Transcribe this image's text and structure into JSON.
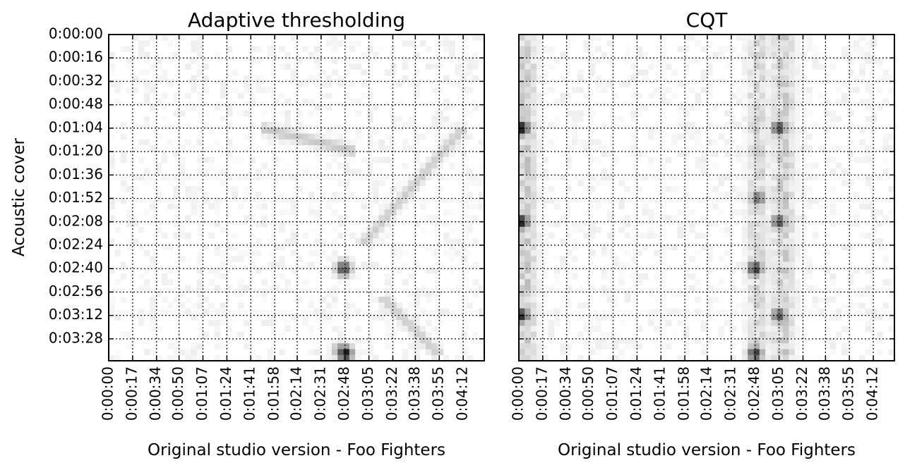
{
  "chart_data": [
    {
      "type": "heatmap",
      "title": "Adaptive thresholding",
      "xlabel": "Original studio version - Foo Fighters",
      "ylabel": "Acoustic cover",
      "x_tick_labels": [
        "0:00:00",
        "0:00:17",
        "0:00:34",
        "0:00:50",
        "0:01:07",
        "0:01:24",
        "0:01:41",
        "0:01:58",
        "0:02:14",
        "0:02:31",
        "0:02:48",
        "0:03:05",
        "0:03:22",
        "0:03:38",
        "0:03:55",
        "0:04:12"
      ],
      "y_tick_labels": [
        "0:00:00",
        "0:00:16",
        "0:00:32",
        "0:00:48",
        "0:01:04",
        "0:01:20",
        "0:01:36",
        "0:01:52",
        "0:02:08",
        "0:02:24",
        "0:02:40",
        "0:02:56",
        "0:03:12",
        "0:03:28"
      ],
      "grid": true,
      "colormap": "grayscale (white = low, black = high)",
      "xlim": [
        "0:00:00",
        "0:04:27"
      ],
      "ylim": [
        "0:03:43",
        "0:00:00"
      ],
      "features": [
        {
          "kind": "diagonal",
          "from": [
            "0:01:04",
            "0:04:12"
          ],
          "to": [
            "0:02:24",
            "0:03:00"
          ],
          "intensity": 0.2
        },
        {
          "kind": "diagonal",
          "from": [
            "0:01:04",
            "0:01:48"
          ],
          "to": [
            "0:01:20",
            "0:02:56"
          ],
          "intensity": 0.22
        },
        {
          "kind": "diagonal",
          "from": [
            "0:03:00",
            "0:03:15"
          ],
          "to": [
            "0:03:40",
            "0:03:56"
          ],
          "intensity": 0.2
        },
        {
          "kind": "hotspot",
          "x": "0:02:47",
          "y": "0:02:40",
          "intensity": 0.75
        },
        {
          "kind": "hotspot",
          "x": "0:02:48",
          "y": "0:03:38",
          "intensity": 0.95
        },
        {
          "kind": "hotspot",
          "x": "0:02:45",
          "y": "0:03:36",
          "intensity": 0.5
        }
      ]
    },
    {
      "type": "heatmap",
      "title": "CQT",
      "xlabel": "Original studio version - Foo Fighters",
      "ylabel": "",
      "x_tick_labels": [
        "0:00:00",
        "0:00:17",
        "0:00:34",
        "0:00:50",
        "0:01:07",
        "0:01:24",
        "0:01:41",
        "0:01:58",
        "0:02:14",
        "0:02:31",
        "0:02:48",
        "0:03:05",
        "0:03:22",
        "0:03:38",
        "0:03:55",
        "0:04:12"
      ],
      "y_tick_labels": [],
      "grid": true,
      "colormap": "grayscale (white = low, black = high)",
      "xlim": [
        "0:00:00",
        "0:04:27"
      ],
      "ylim": [
        "0:03:43",
        "0:00:00"
      ],
      "features": [
        {
          "kind": "column",
          "x": "0:00:05",
          "y_from": "0:00:00",
          "y_to": "0:03:43",
          "intensity": 0.55
        },
        {
          "kind": "column",
          "x": "0:03:08",
          "y_from": "0:00:00",
          "y_to": "0:03:43",
          "intensity": 0.55
        },
        {
          "kind": "column",
          "x": "0:02:50",
          "y_from": "0:00:00",
          "y_to": "0:03:43",
          "intensity": 0.45
        },
        {
          "kind": "hotspot",
          "x": "0:00:02",
          "y": "0:01:04",
          "intensity": 0.95
        },
        {
          "kind": "hotspot",
          "x": "0:00:02",
          "y": "0:02:08",
          "intensity": 0.9
        },
        {
          "kind": "hotspot",
          "x": "0:00:02",
          "y": "0:03:12",
          "intensity": 0.85
        },
        {
          "kind": "hotspot",
          "x": "0:03:05",
          "y": "0:01:04",
          "intensity": 0.75
        },
        {
          "kind": "hotspot",
          "x": "0:03:05",
          "y": "0:02:08",
          "intensity": 0.7
        },
        {
          "kind": "hotspot",
          "x": "0:03:05",
          "y": "0:03:12",
          "intensity": 0.7
        },
        {
          "kind": "hotspot",
          "x": "0:02:48",
          "y": "0:02:40",
          "intensity": 0.8
        },
        {
          "kind": "hotspot",
          "x": "0:02:48",
          "y": "0:03:38",
          "intensity": 0.8
        },
        {
          "kind": "hotspot",
          "x": "0:02:50",
          "y": "0:01:52",
          "intensity": 0.6
        }
      ]
    }
  ]
}
